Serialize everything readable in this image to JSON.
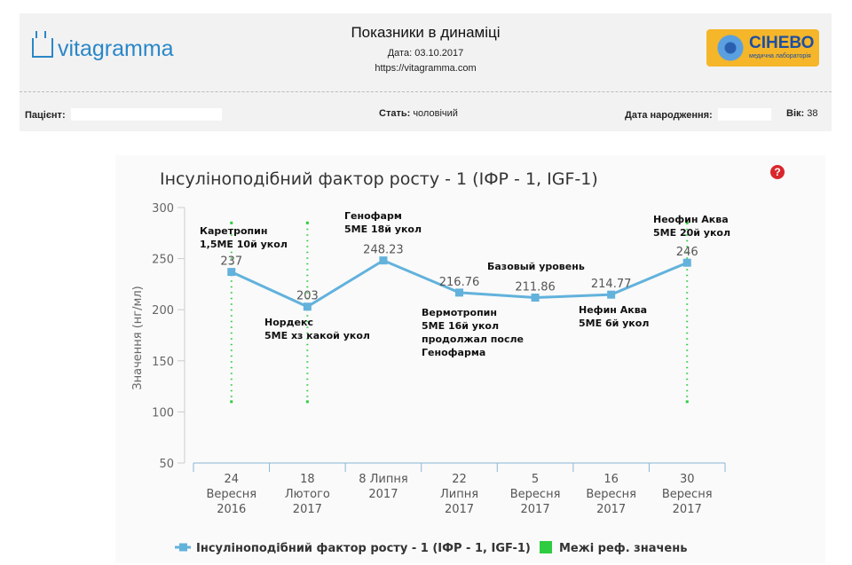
{
  "header": {
    "logo_text": "vitagramma",
    "title": "Показники в динаміці",
    "date_text": "Дата: 03.10.2017",
    "url_text": "https://vitagramma.com",
    "lab_name": "СІНЕВО",
    "lab_subtitle": "медична лабораторія",
    "patient_label": "Пацієнт:",
    "sex_label": "Стать:",
    "sex_value": "чоловічий",
    "dob_label": "Дата народження:",
    "age_label": "Вік:",
    "age_value": "38"
  },
  "help_icon": "?",
  "chart_data": {
    "type": "line",
    "title": "Інсуліноподібний фактор росту - 1 (ІФР - 1, IGF-1)",
    "ylabel": "Значення (нг/мл)",
    "xlabel": "",
    "ylim": [
      50,
      300
    ],
    "yticks": [
      50,
      100,
      150,
      200,
      250,
      300
    ],
    "grid": false,
    "legend_position": "bottom",
    "categories": [
      [
        "24",
        "Вересня",
        "2016"
      ],
      [
        "18",
        "Лютого",
        "2017"
      ],
      [
        "8 Липня",
        "2017"
      ],
      [
        "22",
        "Липня",
        "2017"
      ],
      [
        "5",
        "Вересня",
        "2017"
      ],
      [
        "16",
        "Вересня",
        "2017"
      ],
      [
        "30",
        "Вересня",
        "2017"
      ]
    ],
    "series": [
      {
        "name": "Інсуліноподібний фактор росту - 1 (ІФР - 1, IGF-1)",
        "values": [
          237,
          203,
          248.23,
          216.76,
          211.86,
          214.77,
          246
        ],
        "labels": [
          "237",
          "203",
          "248.23",
          "216.76",
          "211.86",
          "214.77",
          "246"
        ],
        "color": "#62b2dc"
      }
    ],
    "reference": {
      "name": "Межі реф. значень",
      "color": "#2ecc40",
      "low": 110,
      "high": 285,
      "at_points": [
        0,
        1,
        6
      ]
    },
    "annotations": [
      {
        "lines": [
          "Каретропин",
          "1,5МЕ 10й укол"
        ]
      },
      {
        "lines": [
          "Нордекс",
          "5МЕ хз какой укол"
        ]
      },
      {
        "lines": [
          "Генофарм",
          "5МЕ 18й укол"
        ]
      },
      {
        "lines": [
          "Вермотропин",
          "5МЕ 16й укол",
          "продолжал после",
          "Генофарма"
        ]
      },
      {
        "lines": [
          "Базовый уровень"
        ]
      },
      {
        "lines": [
          "Нефин Аква",
          "5МЕ 6й укол"
        ]
      },
      {
        "lines": [
          "Неофин Аква",
          "5МЕ 20й укол"
        ]
      }
    ]
  }
}
